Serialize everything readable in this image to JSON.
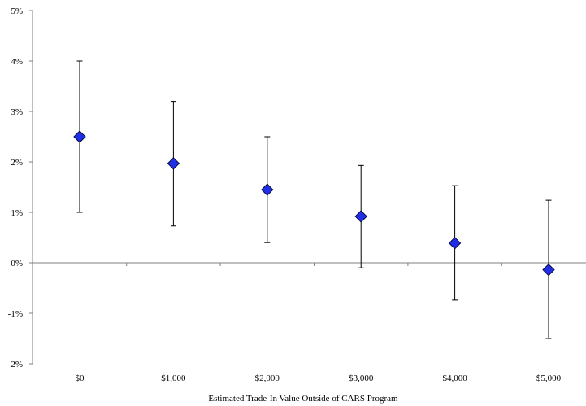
{
  "chart_data": {
    "type": "scatter",
    "title": "",
    "xlabel": "Estimated Trade-In Value Outside of CARS Program",
    "ylabel": "",
    "categories": [
      "$0",
      "$1,000",
      "$2,000",
      "$3,000",
      "$4,000",
      "$5,000"
    ],
    "ylim": [
      -2,
      5
    ],
    "y_ticks": [
      {
        "value": 5,
        "label": "5%"
      },
      {
        "value": 4,
        "label": "4%"
      },
      {
        "value": 3,
        "label": "3%"
      },
      {
        "value": 2,
        "label": "2%"
      },
      {
        "value": 1,
        "label": "1%"
      },
      {
        "value": 0,
        "label": "0%"
      },
      {
        "value": -1,
        "label": "-1%"
      },
      {
        "value": -2,
        "label": "-2%"
      }
    ],
    "series": [
      {
        "values": [
          2.5,
          1.97,
          1.45,
          0.92,
          0.39,
          -0.14
        ],
        "lower": [
          1.0,
          0.73,
          0.4,
          -0.1,
          -0.74,
          -1.5
        ],
        "upper": [
          4.0,
          3.2,
          2.5,
          1.93,
          1.53,
          1.24
        ]
      }
    ],
    "marker": "diamond",
    "marker_color": "#1f2fe6",
    "marker_edge_color": "#0a0a3a",
    "errorbar_color": "#000000",
    "grid": false,
    "zero_line": true
  }
}
